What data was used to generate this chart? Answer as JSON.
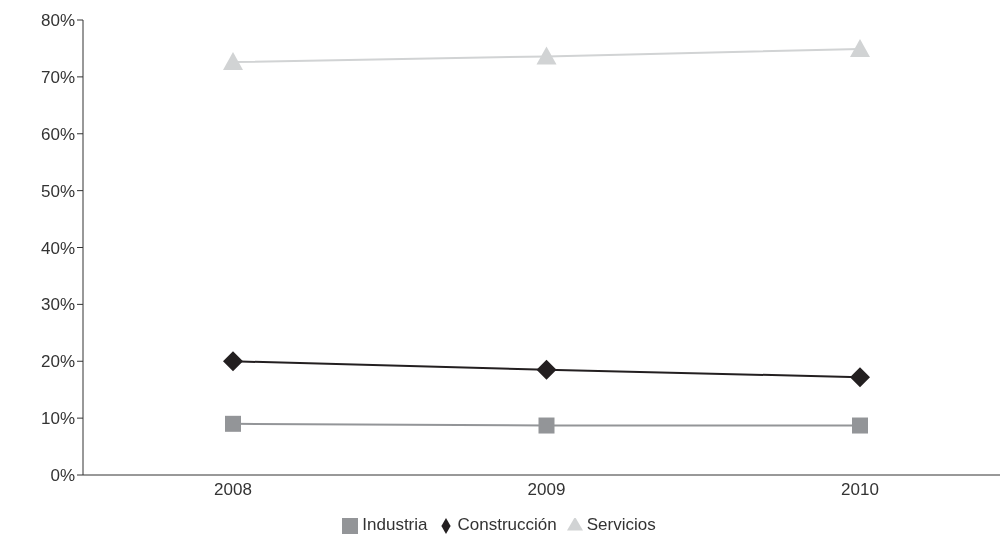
{
  "chart_data": {
    "type": "line",
    "categories": [
      "2008",
      "2009",
      "2010"
    ],
    "series": [
      {
        "name": "Industria",
        "color": "#939598",
        "marker": "square",
        "values": [
          9.0,
          8.7,
          8.7
        ]
      },
      {
        "name": "Construcción",
        "color": "#231f20",
        "marker": "diamond",
        "values": [
          20.0,
          18.5,
          17.2
        ]
      },
      {
        "name": "Servicios",
        "color": "#d1d3d4",
        "marker": "triangle",
        "values": [
          72.6,
          73.6,
          74.9
        ]
      }
    ],
    "ylim": [
      0,
      80
    ],
    "yticks": [
      {
        "value": 0,
        "label": "0%"
      },
      {
        "value": 10,
        "label": "10%"
      },
      {
        "value": 20,
        "label": "20%"
      },
      {
        "value": 30,
        "label": "30%"
      },
      {
        "value": 40,
        "label": "40%"
      },
      {
        "value": 50,
        "label": "50%"
      },
      {
        "value": 60,
        "label": "60%"
      },
      {
        "value": 70,
        "label": "70%"
      },
      {
        "value": 80,
        "label": "80%"
      }
    ],
    "grid": false,
    "legend": "bottom"
  }
}
